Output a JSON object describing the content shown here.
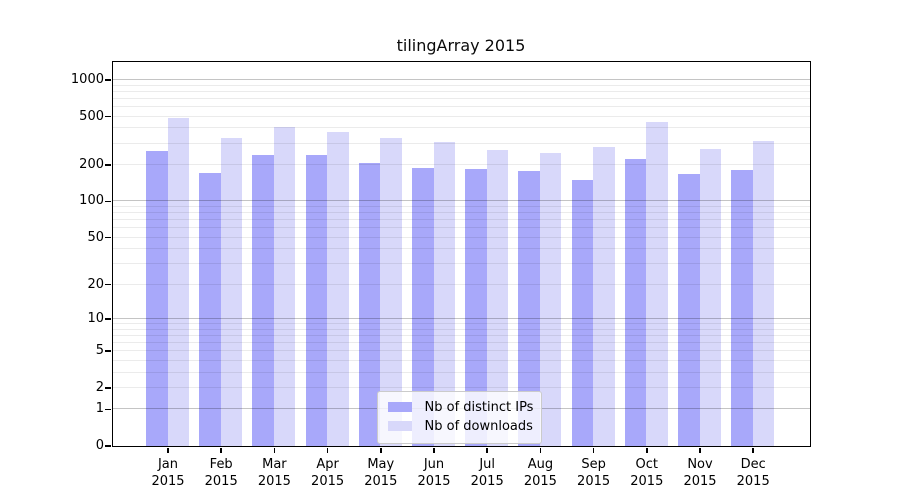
{
  "title": "tilingArray 2015",
  "chart_data": {
    "type": "bar",
    "title": "tilingArray 2015",
    "categories": [
      "Jan 2015",
      "Feb 2015",
      "Mar 2015",
      "Apr 2015",
      "May 2015",
      "Jun 2015",
      "Jul 2015",
      "Aug 2015",
      "Sep 2015",
      "Oct 2015",
      "Nov 2015",
      "Dec 2015"
    ],
    "series": [
      {
        "name": "Nb of distinct IPs",
        "color": "#a8a8fa",
        "values": [
          257,
          170,
          242,
          240,
          205,
          189,
          184,
          176,
          149,
          224,
          168,
          180
        ]
      },
      {
        "name": "Nb of downloads",
        "color": "#d8d8fa",
        "values": [
          484,
          331,
          404,
          372,
          328,
          306,
          262,
          248,
          278,
          450,
          271,
          310
        ]
      }
    ],
    "y_ticks": [
      0,
      1,
      2,
      5,
      10,
      20,
      50,
      100,
      200,
      500,
      1000
    ],
    "y_scale": "log10(value+1)",
    "ylim": [
      0,
      1400
    ],
    "xlabel": "",
    "ylabel": "",
    "grid": "horizontal log gridlines, minor lines light, decade lines darker, drawn over bars",
    "legend_position": "inside-bottom-center",
    "background_color": "#ffffff",
    "axis_color": "#000000"
  }
}
